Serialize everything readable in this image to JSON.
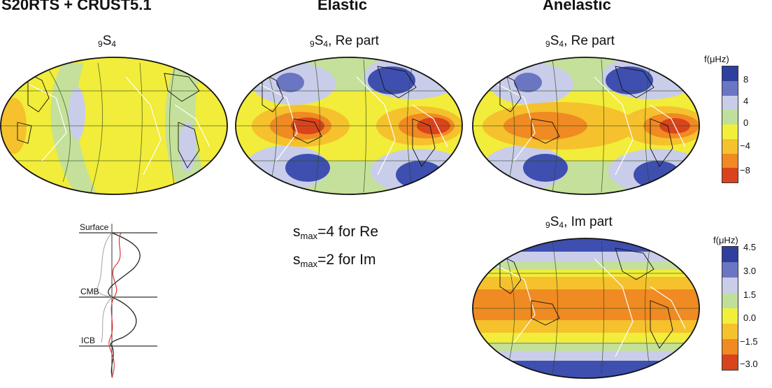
{
  "columns": [
    {
      "title": "S20RTS + CRUST5.1"
    },
    {
      "title": "Elastic"
    },
    {
      "title": "Anelastic"
    }
  ],
  "maps": [
    {
      "sub_left": "9",
      "main": "S",
      "sub_right": "4",
      "suffix": ""
    },
    {
      "sub_left": "9",
      "main": "S",
      "sub_right": "4",
      "suffix": ", Re part"
    },
    {
      "sub_left": "9",
      "main": "S",
      "sub_right": "4",
      "suffix": ", Re part"
    },
    {
      "sub_left": "9",
      "main": "S",
      "sub_right": "4",
      "suffix": ", Im part"
    }
  ],
  "colorbars": [
    {
      "title": "f(μHz)",
      "ticks": [
        "8",
        "4",
        "0",
        "−4",
        "−8"
      ],
      "colors": [
        "#2e3f9e",
        "#6b76c2",
        "#c9cdea",
        "#bfe09a",
        "#f2ef3a",
        "#f5c12d",
        "#f08a22",
        "#d9441c"
      ]
    },
    {
      "title": "f(μHz)",
      "ticks": [
        "4.5",
        "3.0",
        "1.5",
        "0.0",
        "−1.5",
        "−3.0"
      ],
      "colors": [
        "#2e3f9e",
        "#6b76c2",
        "#c9cdea",
        "#bfe09a",
        "#f2ef3a",
        "#f5c12d",
        "#f08a22",
        "#d9441c"
      ]
    }
  ],
  "profile": {
    "labels": [
      "Surface",
      "CMB",
      "ICB"
    ]
  },
  "notes": [
    {
      "base": "s",
      "sub": "max",
      "rest": "=4 for Re"
    },
    {
      "base": "s",
      "sub": "max",
      "rest": "=2 for Im"
    }
  ]
}
